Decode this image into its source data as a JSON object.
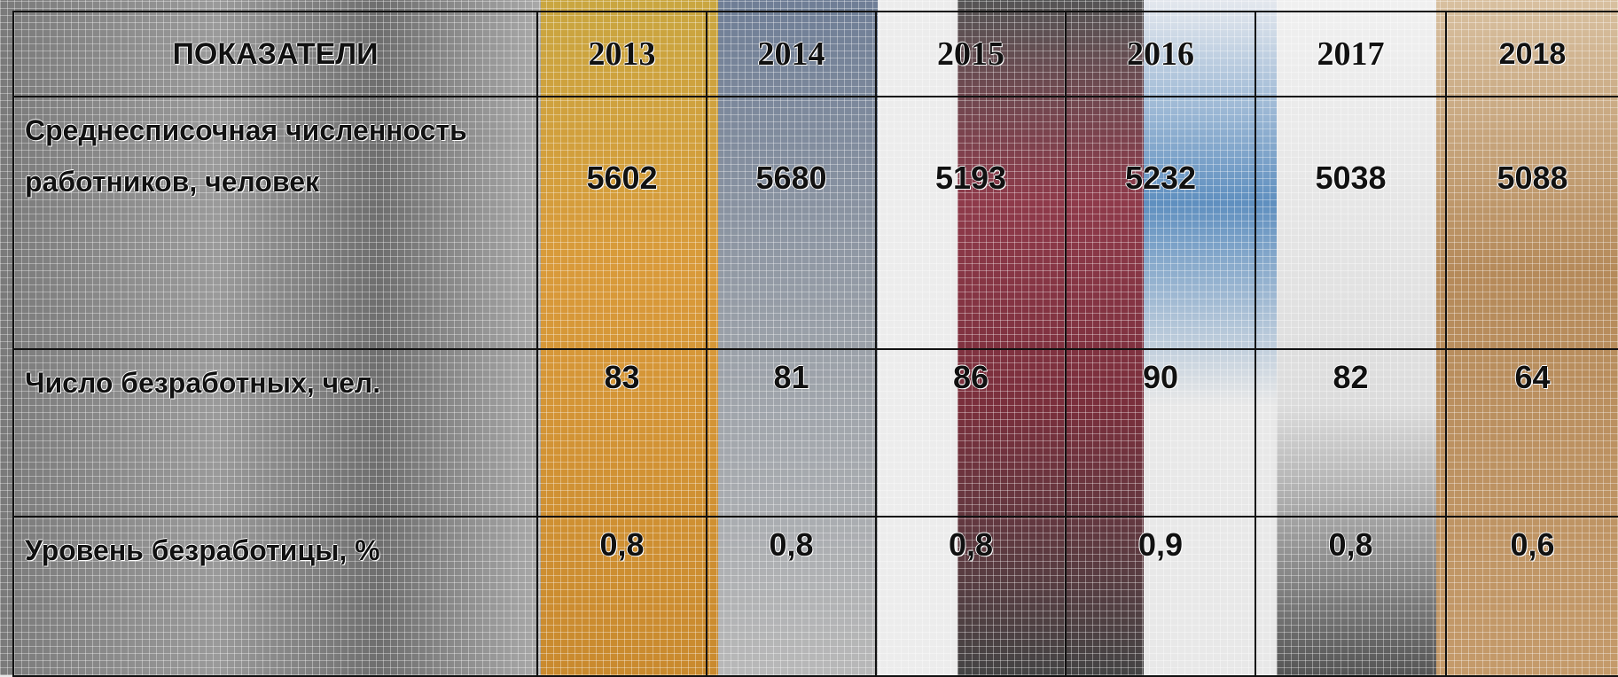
{
  "table": {
    "header": [
      "ПОКАЗАТЕЛИ",
      "2013",
      "2014",
      "2015",
      "2016",
      "2017",
      "2018"
    ],
    "rows": [
      [
        "Среднесписочная численность работников, человек",
        "5602",
        "5680",
        "5193",
        "5232",
        "5038",
        "5088"
      ],
      [
        "Число безработных, чел.",
        "83",
        "81",
        "86",
        "90",
        "82",
        "64"
      ],
      [
        "Уровень безработицы, %",
        "0,8",
        "0,8",
        "0,8",
        "0,9",
        "0,8",
        "0,6"
      ]
    ]
  }
}
